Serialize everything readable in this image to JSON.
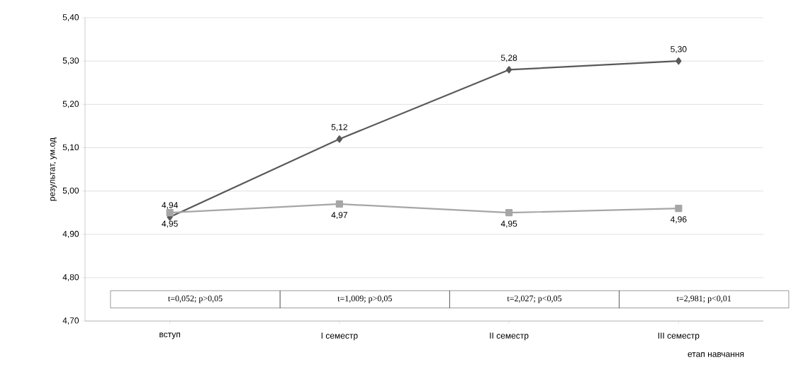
{
  "chart_data": {
    "type": "line",
    "ylabel": "результат, ум.од",
    "xlabel": "етап навчання",
    "categories": [
      "вступ",
      "I семестр",
      "II семестр",
      "III семестр"
    ],
    "series": [
      {
        "color": "#595959",
        "marker": "diamond",
        "values": [
          4.94,
          5.12,
          5.28,
          5.3
        ],
        "value_labels": [
          "4,94",
          "5,12",
          "5,28",
          "5,30"
        ]
      },
      {
        "color": "#a6a6a6",
        "marker": "square",
        "values": [
          4.95,
          4.97,
          4.95,
          4.96
        ],
        "value_labels": [
          "4,95",
          "4,97",
          "4,95",
          "4,96"
        ]
      }
    ],
    "ylim": [
      4.7,
      5.4
    ],
    "yticks": [
      {
        "value": 4.7,
        "label": "4,70"
      },
      {
        "value": 4.8,
        "label": "4,80"
      },
      {
        "value": 4.9,
        "label": "4,90"
      },
      {
        "value": 5.0,
        "label": "5,00"
      },
      {
        "value": 5.1,
        "label": "5,10"
      },
      {
        "value": 5.2,
        "label": "5,20"
      },
      {
        "value": 5.3,
        "label": "5,30"
      },
      {
        "value": 5.4,
        "label": "5,40"
      }
    ],
    "grid": "y",
    "annotations": [
      "t=0,052; p>0,05",
      "t=1,009; p>0,05",
      "t=2,027; p<0,05",
      "t=2,981; p<0,01"
    ]
  }
}
